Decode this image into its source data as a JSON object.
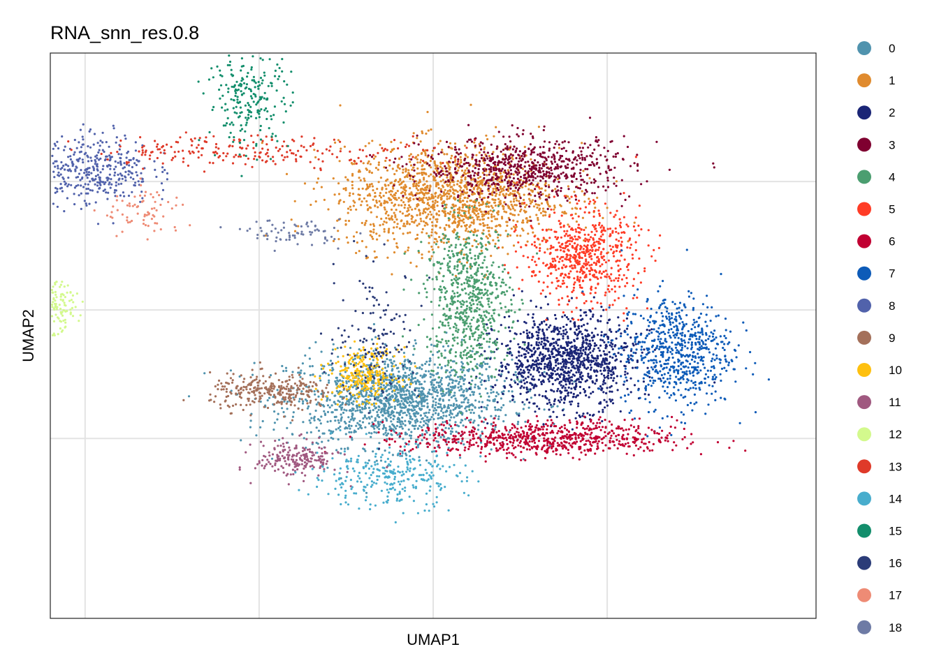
{
  "chart_data": {
    "type": "scatter",
    "title": "RNA_snn_res.0.8",
    "xlabel": "UMAP1",
    "ylabel": "UMAP2",
    "xlim": [
      -11,
      11
    ],
    "ylim": [
      -12,
      10
    ],
    "grid": true,
    "x_gridlines": [
      -10,
      -5,
      0,
      5
    ],
    "y_gridlines": [
      -5,
      0,
      5
    ],
    "legend_position": "right",
    "legend_title": "",
    "series": [
      {
        "name": "0",
        "color": "#5093ae",
        "clusters": [
          {
            "x": -1.0,
            "y": -3.5,
            "sx": 1.6,
            "sy": 0.9,
            "n": 1600
          }
        ]
      },
      {
        "name": "1",
        "color": "#e08b2e",
        "clusters": [
          {
            "x": 0.5,
            "y": 4.4,
            "sx": 1.6,
            "sy": 1.0,
            "n": 1500
          }
        ]
      },
      {
        "name": "2",
        "color": "#1a2576",
        "clusters": [
          {
            "x": 3.8,
            "y": -2.0,
            "sx": 1.0,
            "sy": 0.9,
            "n": 1100
          }
        ]
      },
      {
        "name": "3",
        "color": "#7f0030",
        "clusters": [
          {
            "x": 2.7,
            "y": 5.5,
            "sx": 1.5,
            "sy": 0.6,
            "n": 700
          }
        ]
      },
      {
        "name": "4",
        "color": "#4b9e70",
        "clusters": [
          {
            "x": 1.0,
            "y": 0.4,
            "sx": 0.6,
            "sy": 1.5,
            "n": 700
          }
        ]
      },
      {
        "name": "5",
        "color": "#ff3c26",
        "clusters": [
          {
            "x": 4.3,
            "y": 2.1,
            "sx": 0.8,
            "sy": 0.9,
            "n": 600
          }
        ]
      },
      {
        "name": "6",
        "color": "#c10032",
        "clusters": [
          {
            "x": 3.2,
            "y": -5.0,
            "sx": 1.9,
            "sy": 0.35,
            "n": 700
          }
        ]
      },
      {
        "name": "7",
        "color": "#0d5bb8",
        "clusters": [
          {
            "x": 7.0,
            "y": -1.6,
            "sx": 0.8,
            "sy": 1.1,
            "n": 650
          }
        ]
      },
      {
        "name": "8",
        "color": "#5162ab",
        "clusters": [
          {
            "x": -9.7,
            "y": 5.5,
            "sx": 0.8,
            "sy": 0.7,
            "n": 360
          }
        ]
      },
      {
        "name": "9",
        "color": "#a4705a",
        "clusters": [
          {
            "x": -4.6,
            "y": -3.2,
            "sx": 0.9,
            "sy": 0.35,
            "n": 280
          }
        ]
      },
      {
        "name": "10",
        "color": "#fec00f",
        "clusters": [
          {
            "x": -2.0,
            "y": -2.5,
            "sx": 0.5,
            "sy": 0.5,
            "n": 260
          }
        ]
      },
      {
        "name": "11",
        "color": "#a05980",
        "clusters": [
          {
            "x": -3.9,
            "y": -5.8,
            "sx": 0.6,
            "sy": 0.35,
            "n": 200
          }
        ]
      },
      {
        "name": "12",
        "color": "#d3f98d",
        "clusters": [
          {
            "x": -11.1,
            "y": 0.1,
            "sx": 0.4,
            "sy": 0.45,
            "n": 230
          }
        ]
      },
      {
        "name": "13",
        "color": "#df3a29",
        "clusters": [
          {
            "x": -5.0,
            "y": 6.2,
            "sx": 2.5,
            "sy": 0.3,
            "n": 220
          }
        ]
      },
      {
        "name": "14",
        "color": "#48adcd",
        "clusters": [
          {
            "x": -1.3,
            "y": -6.5,
            "sx": 1.1,
            "sy": 0.6,
            "n": 280
          }
        ]
      },
      {
        "name": "15",
        "color": "#138e6c",
        "clusters": [
          {
            "x": -5.3,
            "y": 8.2,
            "sx": 0.6,
            "sy": 0.9,
            "n": 220
          }
        ]
      },
      {
        "name": "16",
        "color": "#2b3c78",
        "clusters": [
          {
            "x": -1.6,
            "y": -1.0,
            "sx": 0.6,
            "sy": 1.3,
            "n": 140
          }
        ]
      },
      {
        "name": "17",
        "color": "#ee8b75",
        "clusters": [
          {
            "x": -8.3,
            "y": 3.8,
            "sx": 0.6,
            "sy": 0.5,
            "n": 70
          }
        ]
      },
      {
        "name": "18",
        "color": "#6e7ba5",
        "clusters": [
          {
            "x": -4.0,
            "y": 3.0,
            "sx": 0.7,
            "sy": 0.25,
            "n": 70
          }
        ]
      }
    ]
  }
}
